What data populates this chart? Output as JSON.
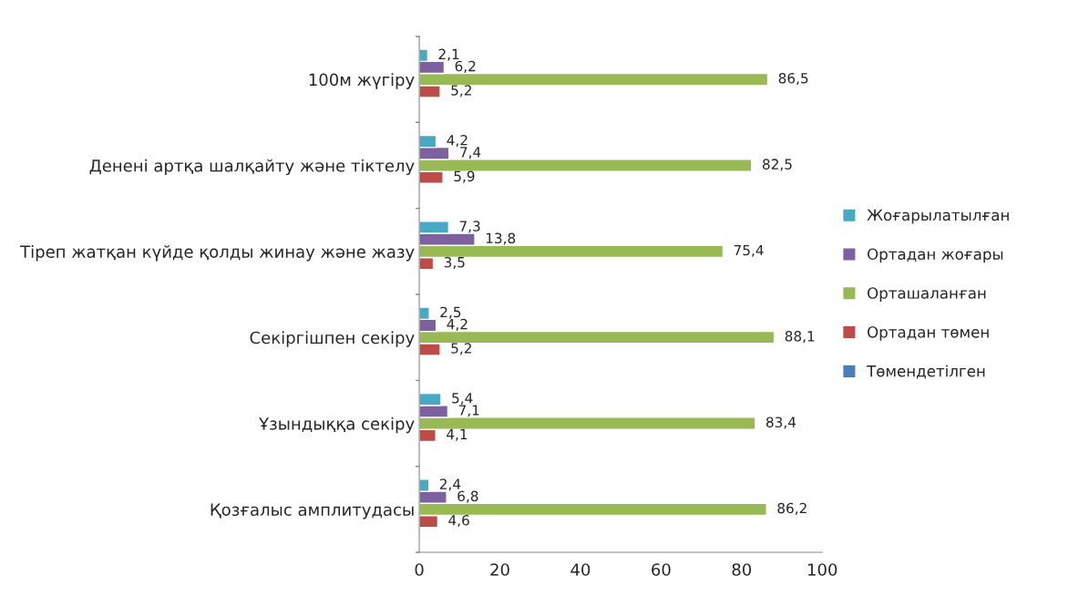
{
  "chart_data": {
    "type": "bar",
    "orientation": "horizontal",
    "categories": [
      "100м жүгіру",
      "Денені артқа шалқайту және тіктелу",
      "Тіреп жатқан күйде қолды жинау және жазу",
      "Секіргішпен секіру",
      "Ұзындыққа секіру",
      "Қозғалыс амплитудасы"
    ],
    "series": [
      {
        "name": "Төмендетілген",
        "color": "#4a7ebb",
        "values": [
          null,
          null,
          null,
          null,
          null,
          null
        ]
      },
      {
        "name": "Ортадан төмен",
        "color": "#be4b48",
        "values": [
          5.2,
          5.9,
          3.5,
          5.2,
          4.1,
          4.6
        ],
        "value_labels": [
          "5,2",
          "5,9",
          "3,5",
          "5,2",
          "4,1",
          "4,6"
        ]
      },
      {
        "name": "Орташаланған",
        "color": "#98b954",
        "values": [
          86.5,
          82.5,
          75.4,
          88.1,
          83.4,
          86.2
        ],
        "value_labels": [
          "86,5",
          "82,5",
          "75,4",
          "88,1",
          "83,4",
          "86,2"
        ]
      },
      {
        "name": "Ортадан жоғары",
        "color": "#7d60a0",
        "values": [
          6.2,
          7.4,
          13.8,
          4.2,
          7.1,
          6.8
        ],
        "value_labels": [
          "6,2",
          "7,4",
          "13,8",
          "4,2",
          "7,1",
          "6,8"
        ]
      },
      {
        "name": "Жоғарылатылған",
        "color": "#46aac5",
        "values": [
          2.1,
          4.2,
          7.3,
          2.5,
          5.4,
          2.4
        ],
        "value_labels": [
          "2,1",
          "4,2",
          "7,3",
          "2,5",
          "5,4",
          "2,4"
        ]
      }
    ],
    "xlim": [
      0,
      100
    ],
    "xticks": [
      0,
      20,
      40,
      60,
      80,
      100
    ],
    "legend": "right",
    "grid": false
  }
}
